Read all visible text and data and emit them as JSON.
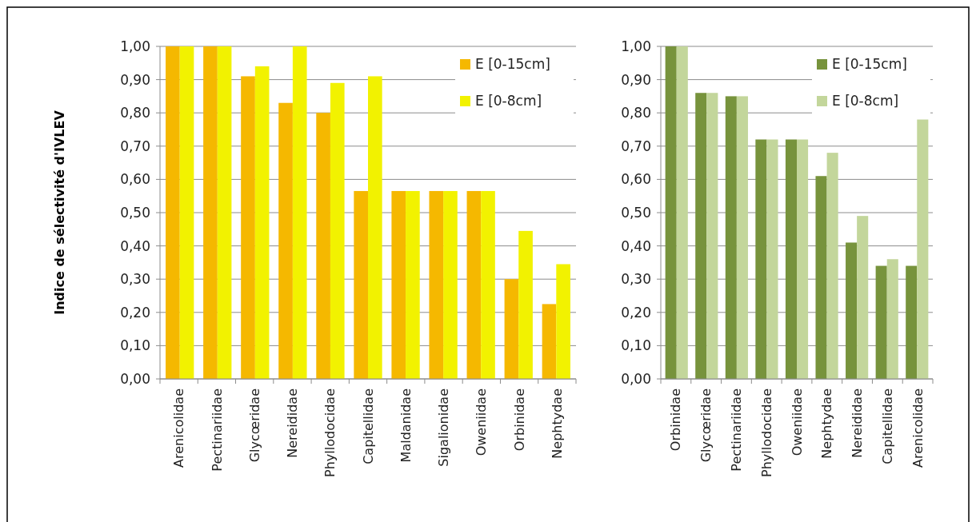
{
  "chart_data": [
    {
      "type": "bar",
      "ylabel": "Indice de sélectivité d'IVLEV",
      "categories": [
        "Arenicolidae",
        "Pectinariidae",
        "Glycœridae",
        "Nereididae",
        "Phyllodocidae",
        "Capitellidae",
        "Maldanidae",
        "Sigalionidae",
        "Oweniidae",
        "Orbinidae",
        "Nephtydae"
      ],
      "series": [
        {
          "name": "E [0-15cm]",
          "color": "#f5b800",
          "values": [
            1,
            1,
            0.91,
            0.83,
            0.8,
            0.565,
            0.565,
            0.565,
            0.565,
            0.3,
            0.225
          ]
        },
        {
          "name": "E [0-8cm]",
          "color": "#f2f200",
          "values": [
            1,
            1,
            0.94,
            1,
            0.89,
            0.91,
            0.565,
            0.565,
            0.565,
            0.445,
            0.345
          ]
        }
      ],
      "ylim": [
        0,
        1
      ],
      "yticks": [
        {
          "value": 0,
          "label": "0,00"
        },
        {
          "value": 0.1,
          "label": "0,10"
        },
        {
          "value": 0.2,
          "label": "0,20"
        },
        {
          "value": 0.3,
          "label": "0,30"
        },
        {
          "value": 0.4,
          "label": "0,40"
        },
        {
          "value": 0.5,
          "label": "0,50"
        },
        {
          "value": 0.6,
          "label": "0,60"
        },
        {
          "value": 0.7,
          "label": "0,70"
        },
        {
          "value": 0.8,
          "label": "0,80"
        },
        {
          "value": 0.9,
          "label": "0,90"
        },
        {
          "value": 1,
          "label": "1,00"
        }
      ],
      "grid": "y",
      "legend": "top right"
    },
    {
      "type": "bar",
      "categories": [
        "Orbinidae",
        "Glycœridae",
        "Pectinariidae",
        "Phyllodocidae",
        "Oweniidae",
        "Nephtydae",
        "Nereididae",
        "Capitellidae",
        "Arenicolidae"
      ],
      "series": [
        {
          "name": "E [0-15cm]",
          "color": "#77933c",
          "values": [
            1,
            0.86,
            0.85,
            0.72,
            0.72,
            0.61,
            0.41,
            0.34,
            0.34
          ]
        },
        {
          "name": "E [0-8cm]",
          "color": "#c3d69b",
          "values": [
            1,
            0.86,
            0.85,
            0.72,
            0.72,
            0.68,
            0.49,
            0.36,
            0.78
          ]
        }
      ],
      "ylim": [
        0,
        1
      ],
      "yticks": [
        {
          "value": 0,
          "label": "0,00"
        },
        {
          "value": 0.1,
          "label": "0,10"
        },
        {
          "value": 0.2,
          "label": "0,20"
        },
        {
          "value": 0.3,
          "label": "0,30"
        },
        {
          "value": 0.4,
          "label": "0,40"
        },
        {
          "value": 0.5,
          "label": "0,50"
        },
        {
          "value": 0.6,
          "label": "0,60"
        },
        {
          "value": 0.7,
          "label": "0,70"
        },
        {
          "value": 0.8,
          "label": "0,80"
        },
        {
          "value": 0.9,
          "label": "0,90"
        },
        {
          "value": 1,
          "label": "1,00"
        }
      ],
      "grid": "y",
      "legend": "top right"
    }
  ]
}
